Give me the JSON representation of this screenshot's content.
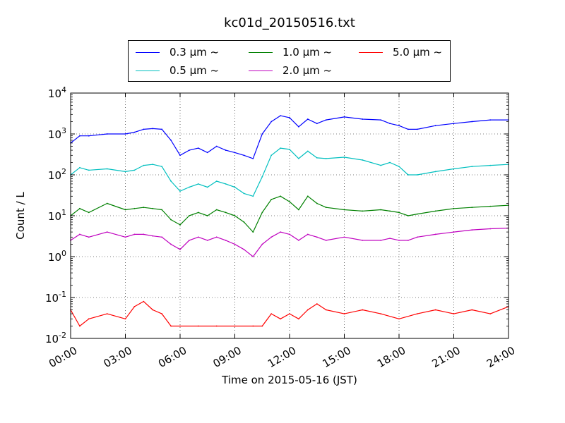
{
  "chart_data": {
    "type": "line",
    "title": "kc01d_20150516.txt",
    "xlabel": "Time on 2015-05-16 (JST)",
    "ylabel": "Count / L",
    "y_scale": "log",
    "ylim": [
      0.01,
      10000
    ],
    "x_unit": "hours",
    "xlim": [
      0,
      24
    ],
    "x_ticks": [
      0,
      3,
      6,
      9,
      12,
      15,
      18,
      21,
      24
    ],
    "x_tick_labels": [
      "00:00",
      "03:00",
      "06:00",
      "09:00",
      "12:00",
      "15:00",
      "18:00",
      "21:00",
      "24:00"
    ],
    "y_tick_labels": [
      {
        "base": "10",
        "exp": "-2"
      },
      {
        "base": "10",
        "exp": "-1"
      },
      {
        "base": "10",
        "exp": "0"
      },
      {
        "base": "10",
        "exp": "1"
      },
      {
        "base": "10",
        "exp": "2"
      },
      {
        "base": "10",
        "exp": "3"
      },
      {
        "base": "10",
        "exp": "4"
      }
    ],
    "grid": true,
    "legend_position": "top-center-outside",
    "series": [
      {
        "name": "0.3 μm ~",
        "color": "#0000ff",
        "x": [
          0,
          0.5,
          1,
          2,
          3,
          3.5,
          4,
          4.5,
          5,
          5.5,
          6,
          6.5,
          7,
          7.5,
          8,
          8.5,
          9,
          9.5,
          10,
          10.5,
          11,
          11.5,
          12,
          12.5,
          13,
          13.5,
          14,
          15,
          16,
          17,
          17.5,
          18,
          18.5,
          19,
          20,
          21,
          22,
          23,
          24
        ],
        "y": [
          600,
          900,
          900,
          1000,
          1000,
          1100,
          1300,
          1350,
          1300,
          700,
          300,
          400,
          450,
          350,
          500,
          400,
          350,
          300,
          250,
          1000,
          2000,
          2800,
          2500,
          1500,
          2300,
          1800,
          2200,
          2600,
          2300,
          2200,
          1800,
          1600,
          1300,
          1300,
          1600,
          1800,
          2000,
          2200,
          2200
        ]
      },
      {
        "name": "0.5 μm ~",
        "color": "#00bfbf",
        "x": [
          0,
          0.5,
          1,
          2,
          3,
          3.5,
          4,
          4.5,
          5,
          5.5,
          6,
          6.5,
          7,
          7.5,
          8,
          8.5,
          9,
          9.5,
          10,
          10.5,
          11,
          11.5,
          12,
          12.5,
          13,
          13.5,
          14,
          15,
          16,
          17,
          17.5,
          18,
          18.5,
          19,
          20,
          21,
          22,
          23,
          24
        ],
        "y": [
          100,
          150,
          130,
          140,
          120,
          130,
          170,
          180,
          160,
          70,
          40,
          50,
          60,
          50,
          70,
          60,
          50,
          35,
          30,
          90,
          300,
          450,
          420,
          250,
          380,
          260,
          250,
          270,
          230,
          170,
          200,
          160,
          100,
          100,
          120,
          140,
          160,
          170,
          180
        ]
      },
      {
        "name": "1.0 μm ~",
        "color": "#008000",
        "x": [
          0,
          0.5,
          1,
          2,
          3,
          3.5,
          4,
          4.5,
          5,
          5.5,
          6,
          6.5,
          7,
          7.5,
          8,
          8.5,
          9,
          9.5,
          10,
          10.5,
          11,
          11.5,
          12,
          12.5,
          13,
          13.5,
          14,
          15,
          16,
          17,
          17.5,
          18,
          18.5,
          19,
          20,
          21,
          22,
          23,
          24
        ],
        "y": [
          10,
          15,
          12,
          20,
          14,
          15,
          16,
          15,
          14,
          8,
          6,
          10,
          12,
          10,
          14,
          12,
          10,
          7,
          4,
          12,
          25,
          30,
          22,
          14,
          30,
          20,
          16,
          14,
          13,
          14,
          13,
          12,
          10,
          11,
          13,
          15,
          16,
          17,
          18
        ]
      },
      {
        "name": "2.0 μm ~",
        "color": "#bf00bf",
        "x": [
          0,
          0.5,
          1,
          2,
          3,
          3.5,
          4,
          4.5,
          5,
          5.5,
          6,
          6.5,
          7,
          7.5,
          8,
          8.5,
          9,
          9.5,
          10,
          10.5,
          11,
          11.5,
          12,
          12.5,
          13,
          13.5,
          14,
          15,
          16,
          17,
          17.5,
          18,
          18.5,
          19,
          20,
          21,
          22,
          23,
          24
        ],
        "y": [
          2.5,
          3.5,
          3,
          4,
          3,
          3.5,
          3.5,
          3.2,
          3,
          2,
          1.5,
          2.5,
          3,
          2.5,
          3,
          2.5,
          2,
          1.5,
          1,
          2,
          3,
          4,
          3.5,
          2.5,
          3.5,
          3,
          2.5,
          3,
          2.5,
          2.5,
          2.8,
          2.5,
          2.5,
          3,
          3.5,
          4,
          4.5,
          4.8,
          5
        ]
      },
      {
        "name": "5.0 μm ~",
        "color": "#ff0000",
        "x": [
          0,
          0.5,
          1,
          2,
          3,
          3.5,
          4,
          4.5,
          5,
          5.5,
          6,
          7,
          8,
          9,
          10,
          10.5,
          11,
          11.5,
          12,
          12.5,
          13,
          13.5,
          14,
          15,
          16,
          17,
          18,
          19,
          20,
          21,
          22,
          23,
          24
        ],
        "y": [
          0.05,
          0.02,
          0.03,
          0.04,
          0.03,
          0.06,
          0.08,
          0.05,
          0.04,
          0.02,
          0.02,
          0.02,
          0.02,
          0.02,
          0.02,
          0.02,
          0.04,
          0.03,
          0.04,
          0.03,
          0.05,
          0.07,
          0.05,
          0.04,
          0.05,
          0.04,
          0.03,
          0.04,
          0.05,
          0.04,
          0.05,
          0.04,
          0.06
        ]
      }
    ]
  }
}
